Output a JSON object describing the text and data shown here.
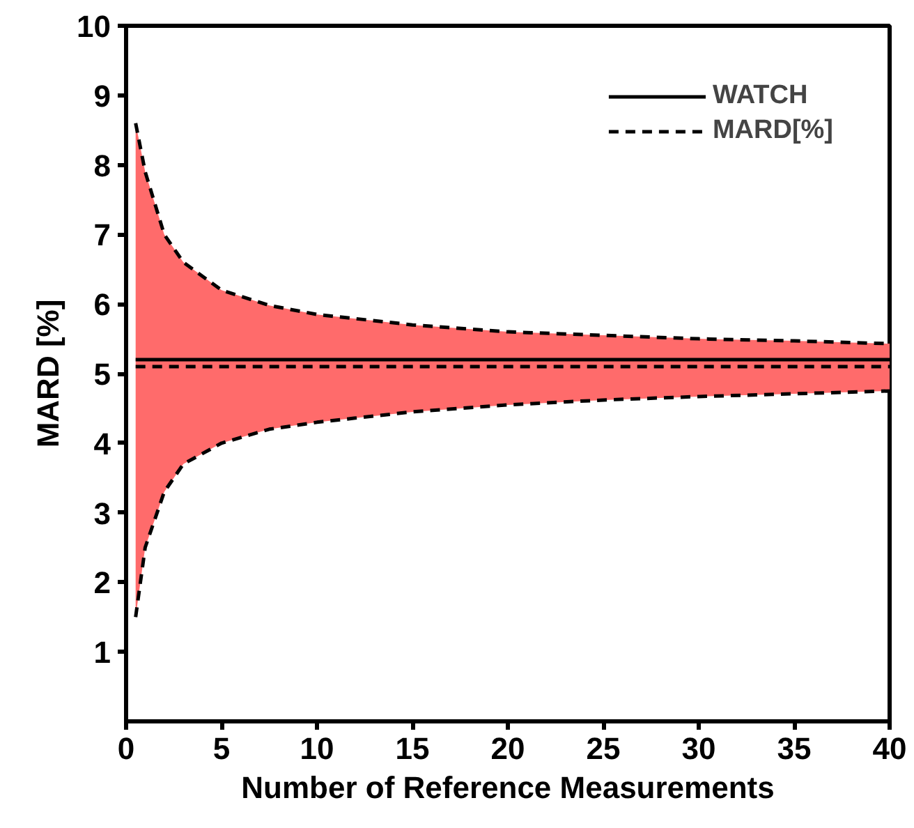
{
  "chart_data": {
    "type": "line",
    "xlabel": "Number of Reference Measurements",
    "ylabel": "MARD [%]",
    "x": [
      0.5,
      1,
      2,
      3,
      5,
      7.5,
      10,
      15,
      20,
      25,
      30,
      35,
      40
    ],
    "series": [
      {
        "name": "WATCH",
        "color": "#000000",
        "line_style": "solid",
        "values": [
          5.2,
          5.2,
          5.2,
          5.2,
          5.2,
          5.2,
          5.2,
          5.2,
          5.2,
          5.2,
          5.2,
          5.2,
          5.2
        ]
      },
      {
        "name": "MARD[%]",
        "color": "#000000",
        "line_style": "dashed",
        "values": [
          5.1,
          5.1,
          5.1,
          5.1,
          5.1,
          5.1,
          5.1,
          5.1,
          5.1,
          5.1,
          5.1,
          5.1,
          5.1
        ],
        "lower": [
          1.5,
          2.5,
          3.3,
          3.7,
          4.0,
          4.2,
          4.3,
          4.45,
          4.55,
          4.62,
          4.67,
          4.71,
          4.75
        ],
        "upper": [
          8.6,
          7.9,
          7.0,
          6.6,
          6.2,
          5.98,
          5.85,
          5.7,
          5.6,
          5.55,
          5.5,
          5.47,
          5.43
        ]
      },
      {
        "color": "#000000",
        "line_style": "dashed",
        "values": [
          8.6,
          7.9,
          7.0,
          6.6,
          6.2,
          5.98,
          5.85,
          5.7,
          5.6,
          5.55,
          5.5,
          5.47,
          5.43
        ]
      },
      {
        "color": "#000000",
        "line_style": "dashed",
        "values": [
          1.5,
          2.5,
          3.3,
          3.7,
          4.0,
          4.2,
          4.3,
          4.45,
          4.55,
          4.62,
          4.67,
          4.71,
          4.75
        ]
      }
    ],
    "xlim": [
      0,
      40
    ],
    "ylim": [
      0,
      10
    ],
    "xticks": [
      0,
      5,
      10,
      15,
      20,
      25,
      30,
      35,
      40
    ],
    "yticks": [
      1,
      2,
      3,
      4,
      5,
      6,
      7,
      8,
      9,
      10
    ],
    "grid": false,
    "legend": "top right",
    "marker": "none"
  }
}
